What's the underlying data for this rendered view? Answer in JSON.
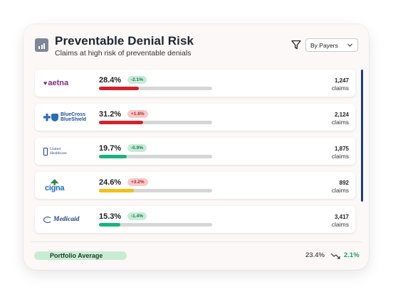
{
  "header": {
    "title": "Preventable Denial Risk",
    "subtitle": "Claims at high risk of preventable denials",
    "icon": "bar-chart-icon",
    "filter_icon": "filter-icon",
    "dropdown_value": "By Payers"
  },
  "colors": {
    "red": "#d3222c",
    "green": "#18b47a",
    "yellow": "#f4c014",
    "scrollbar": "#1c3f7a"
  },
  "payers": [
    {
      "logo_text": "aetna",
      "pct": "28.4%",
      "change": "-2.1%",
      "direction": "down",
      "risk": 0.284,
      "color": "#d3222c",
      "count": "1,247",
      "unit": "claims"
    },
    {
      "logo_text": "BlueCross BlueShield",
      "pct": "31.2%",
      "change": "+1.8%",
      "direction": "up",
      "risk": 0.312,
      "color": "#d3222c",
      "count": "2,124",
      "unit": "claims"
    },
    {
      "logo_text": "United Healthcare",
      "pct": "19.7%",
      "change": "-0.9%",
      "direction": "down",
      "risk": 0.197,
      "color": "#18b47a",
      "count": "1,875",
      "unit": "claims"
    },
    {
      "logo_text": "cigna",
      "pct": "24.6%",
      "change": "+3.2%",
      "direction": "up",
      "risk": 0.246,
      "color": "#f4c014",
      "count": "892",
      "unit": "claims"
    },
    {
      "logo_text": "Medicaid",
      "pct": "15.3%",
      "change": "-1.4%",
      "direction": "down",
      "risk": 0.153,
      "color": "#18b47a",
      "count": "3,417",
      "unit": "claims"
    }
  ],
  "footer": {
    "label": "Portfolio Average",
    "average": "23.4%",
    "trend_icon": "trend-down-icon",
    "trend": "2.1%"
  }
}
